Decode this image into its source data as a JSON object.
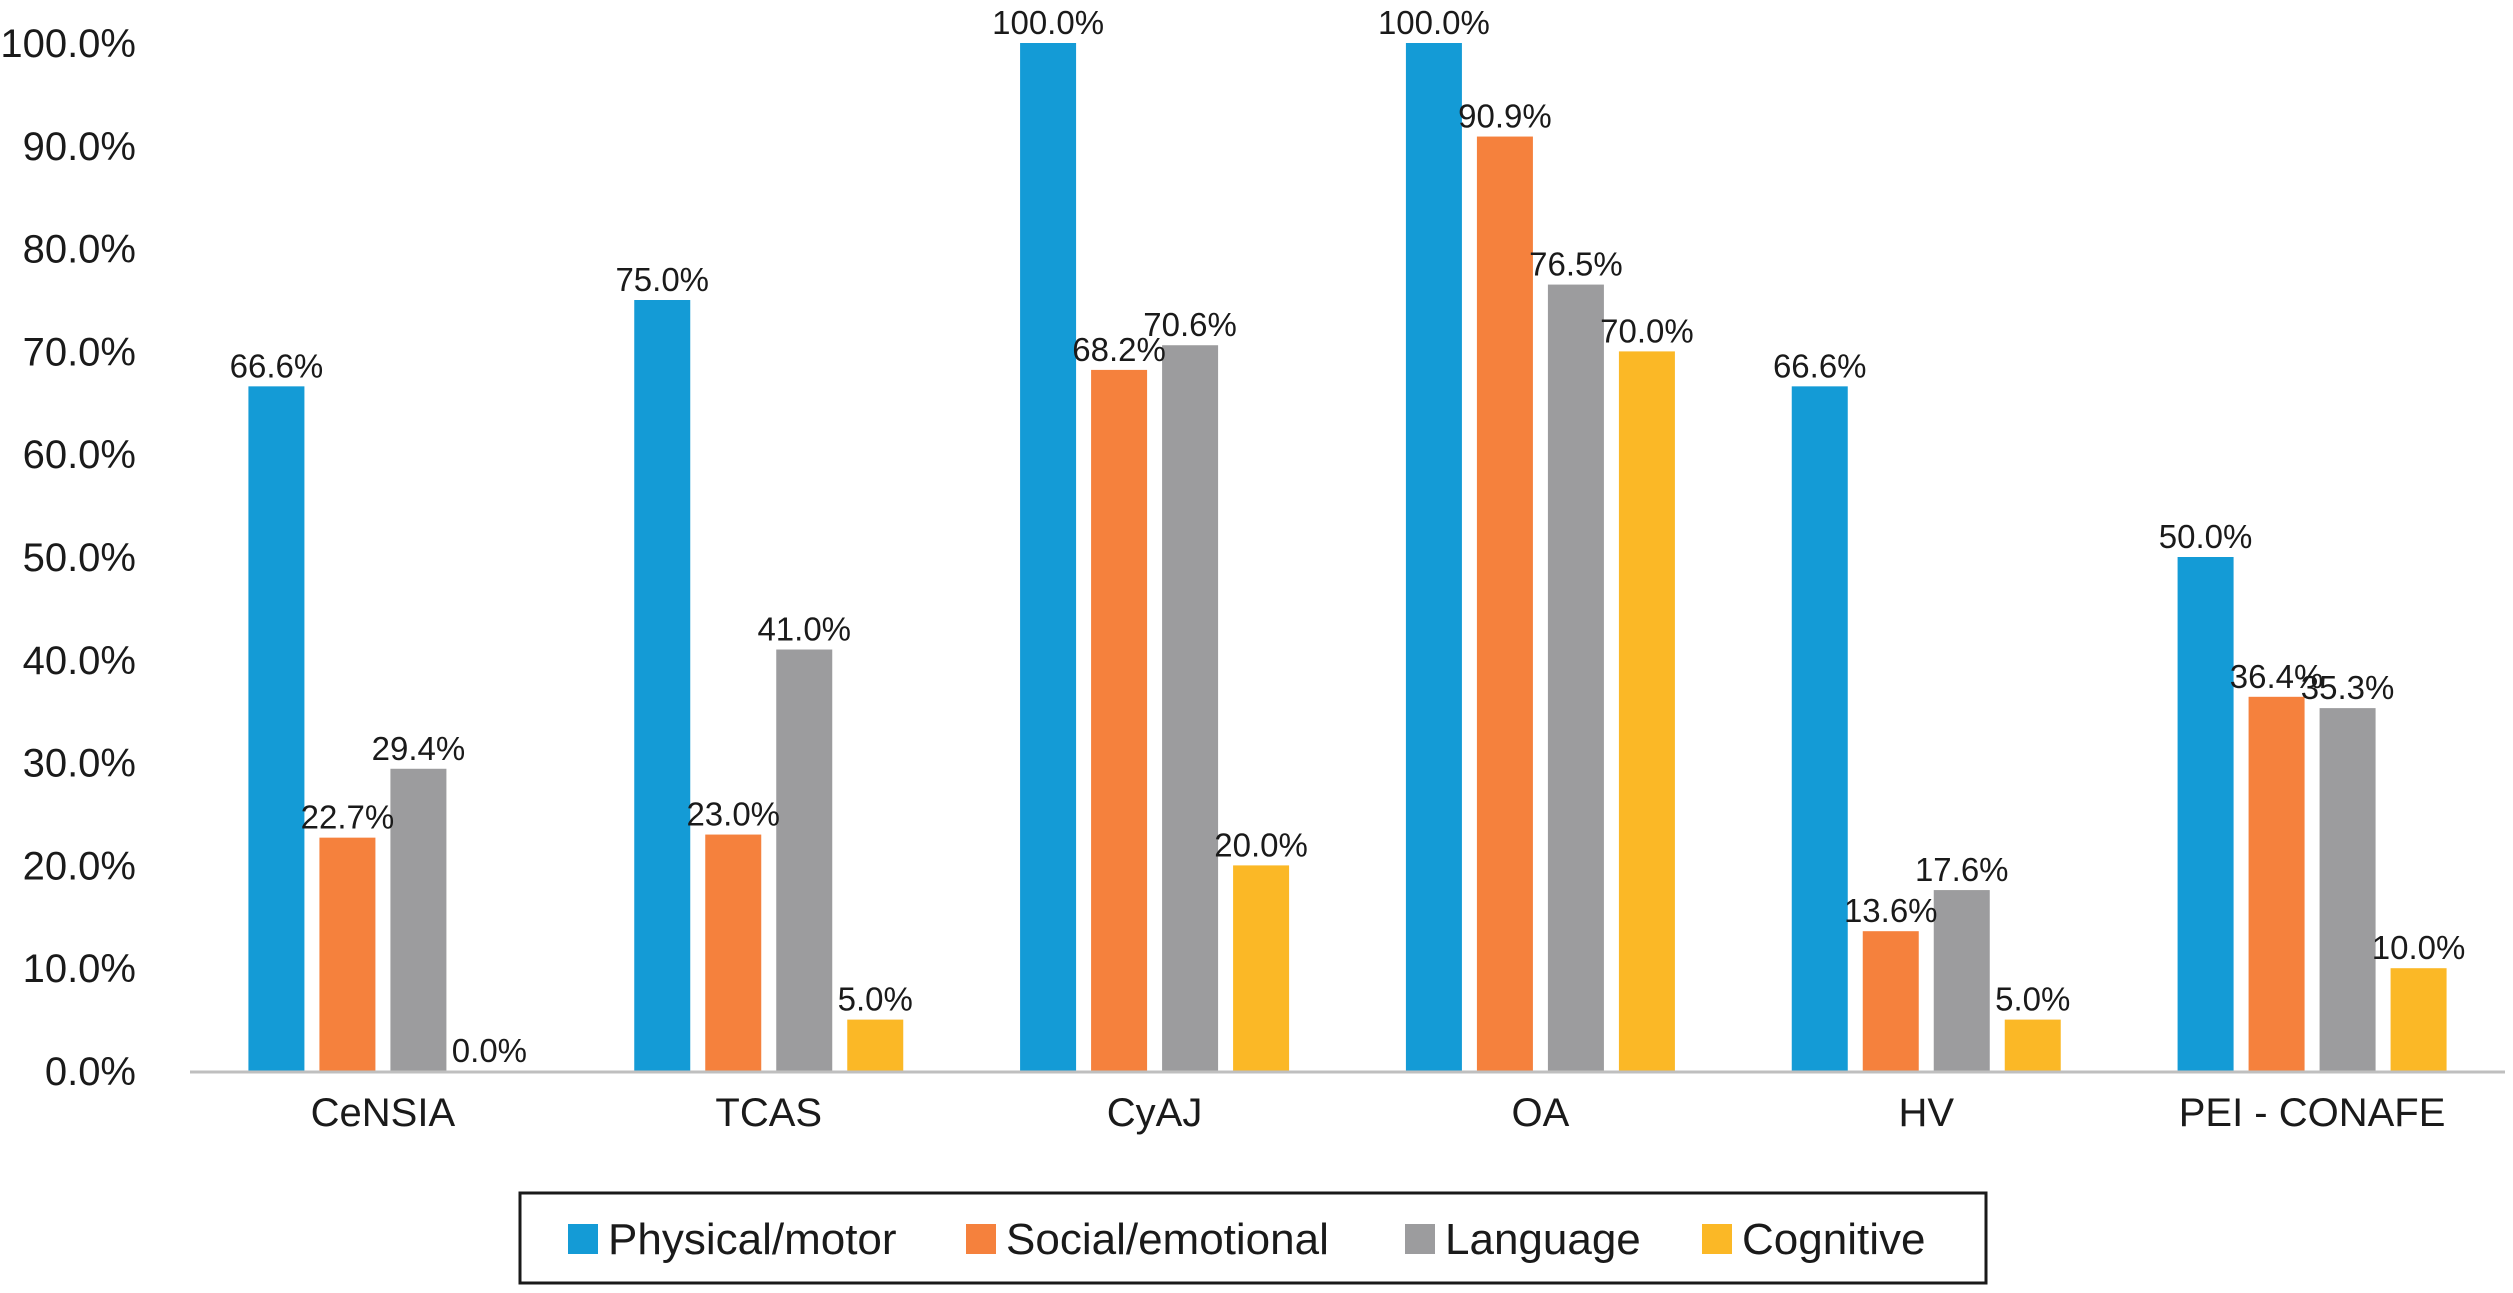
{
  "chart_data": {
    "type": "bar",
    "title": "",
    "xlabel": "",
    "ylabel": "",
    "categories": [
      "CeNSIA",
      "TCAS",
      "CyAJ",
      "OA",
      "HV",
      "PEI - CONAFE"
    ],
    "ylim": [
      0,
      100
    ],
    "yticks": [
      0,
      10,
      20,
      30,
      40,
      50,
      60,
      70,
      80,
      90,
      100
    ],
    "ytick_labels": [
      "0.0%",
      "10.0%",
      "20.0%",
      "30.0%",
      "40.0%",
      "50.0%",
      "60.0%",
      "70.0%",
      "80.0%",
      "90.0%",
      "100.0%"
    ],
    "grid": false,
    "legend_position": "bottom",
    "series": [
      {
        "name": "Physical/motor",
        "color": "#149bd6",
        "values": [
          66.6,
          75.0,
          100.0,
          100.0,
          66.6,
          50.0
        ],
        "labels": [
          "66.6%",
          "75.0%",
          "100.0%",
          "100.0%",
          "66.6%",
          "50.0%"
        ]
      },
      {
        "name": "Social/emotional",
        "color": "#f5813d",
        "values": [
          22.7,
          23.0,
          68.2,
          90.9,
          13.6,
          36.4
        ],
        "labels": [
          "22.7%",
          "23.0%",
          "68.2%",
          "90.9%",
          "13.6%",
          "36.4%"
        ]
      },
      {
        "name": "Language",
        "color": "#9c9c9e",
        "values": [
          29.4,
          41.0,
          70.6,
          76.5,
          17.6,
          35.3
        ],
        "labels": [
          "29.4%",
          "41.0%",
          "70.6%",
          "76.5%",
          "17.6%",
          "35.3%"
        ]
      },
      {
        "name": "Cognitive",
        "color": "#fbb826",
        "values": [
          0.0,
          5.0,
          20.0,
          70.0,
          5.0,
          10.0
        ],
        "labels": [
          "0.0%",
          "5.0%",
          "20.0%",
          "70.0%",
          "5.0%",
          "10.0%"
        ]
      }
    ]
  }
}
